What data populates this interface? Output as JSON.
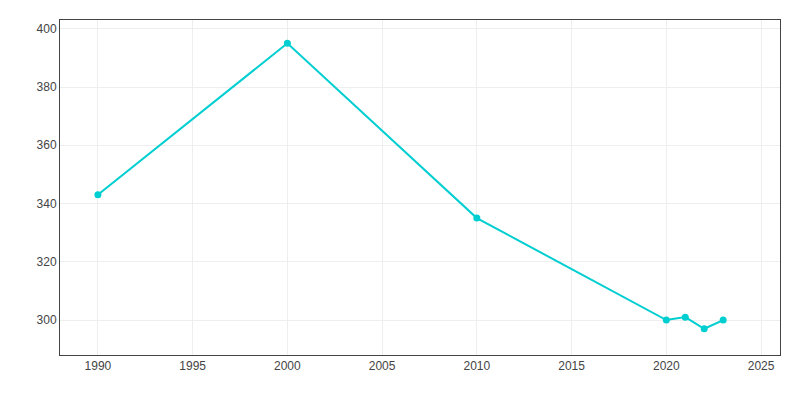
{
  "chart_data": {
    "type": "line",
    "x": [
      1990,
      2000,
      2010,
      2020,
      2021,
      2022,
      2023
    ],
    "values": [
      343,
      395,
      335,
      300,
      301,
      297,
      300
    ],
    "color": "#00CED1",
    "marker": "circle",
    "xlim": [
      1988,
      2026
    ],
    "xticks": [
      1990,
      1995,
      2000,
      2005,
      2010,
      2015,
      2020,
      2025
    ],
    "ylim": [
      288,
      403
    ],
    "yticks": [
      300,
      320,
      340,
      360,
      380,
      400
    ],
    "grid": true
  }
}
